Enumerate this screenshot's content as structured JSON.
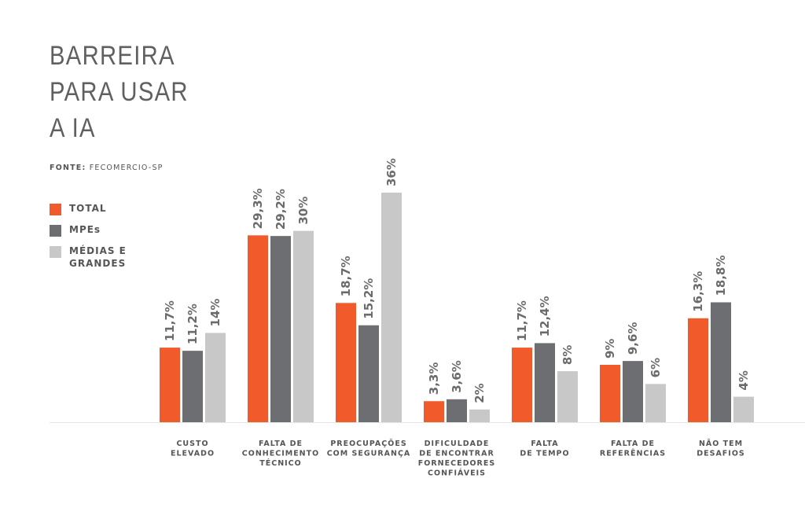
{
  "title_lines": [
    "BARREIRA",
    "PARA USAR",
    "A IA"
  ],
  "source": {
    "label": "FONTE:",
    "text": "FECOMERCIO-SP"
  },
  "colors": {
    "total": "#f15a2b",
    "mpes": "#6d6e71",
    "medias": "#c8c8c8",
    "baseline": "#e6e6e6"
  },
  "legend": [
    {
      "label": "TOTAL",
      "color": "#f15a2b"
    },
    {
      "label": "MPEs",
      "color": "#6d6e71"
    },
    {
      "label": "MÉDIAS E\nGRANDES",
      "color": "#c8c8c8"
    }
  ],
  "chart_data": {
    "type": "bar",
    "title": "BARREIRA PARA USAR A IA",
    "ylim": [
      0,
      40
    ],
    "grid": false,
    "legend_position": "left",
    "categories": [
      [
        "CUSTO",
        "ELEVADO"
      ],
      [
        "FALTA DE",
        "CONHECIMENTO",
        "TÉCNICO"
      ],
      [
        "PREOCUPAÇÕES",
        "COM SEGURANÇA"
      ],
      [
        "DIFICULDADE",
        "DE ENCONTRAR",
        "FORNECEDORES",
        "CONFIÁVEIS"
      ],
      [
        "FALTA",
        "DE TEMPO"
      ],
      [
        "FALTA DE",
        "REFERÊNCIAS"
      ],
      [
        "NÃO TEM",
        "DESAFIOS"
      ]
    ],
    "series": [
      {
        "name": "TOTAL",
        "color": "#f15a2b",
        "values": [
          11.7,
          29.3,
          18.7,
          3.3,
          11.7,
          9,
          16.3
        ],
        "labels": [
          "11,7%",
          "29,3%",
          "18,7%",
          "3,3%",
          "11,7%",
          "9%",
          "16,3%"
        ]
      },
      {
        "name": "MPEs",
        "color": "#6d6e71",
        "values": [
          11.2,
          29.2,
          15.2,
          3.6,
          12.4,
          9.6,
          18.8
        ],
        "labels": [
          "11,2%",
          "29,2%",
          "15,2%",
          "3,6%",
          "12,4%",
          "9,6%",
          "18,8%"
        ]
      },
      {
        "name": "MÉDIAS E GRANDES",
        "color": "#c8c8c8",
        "values": [
          14,
          30,
          36,
          2,
          8,
          6,
          4
        ],
        "labels": [
          "14%",
          "30%",
          "36%",
          "2%",
          "8%",
          "6%",
          "4%"
        ]
      }
    ]
  }
}
